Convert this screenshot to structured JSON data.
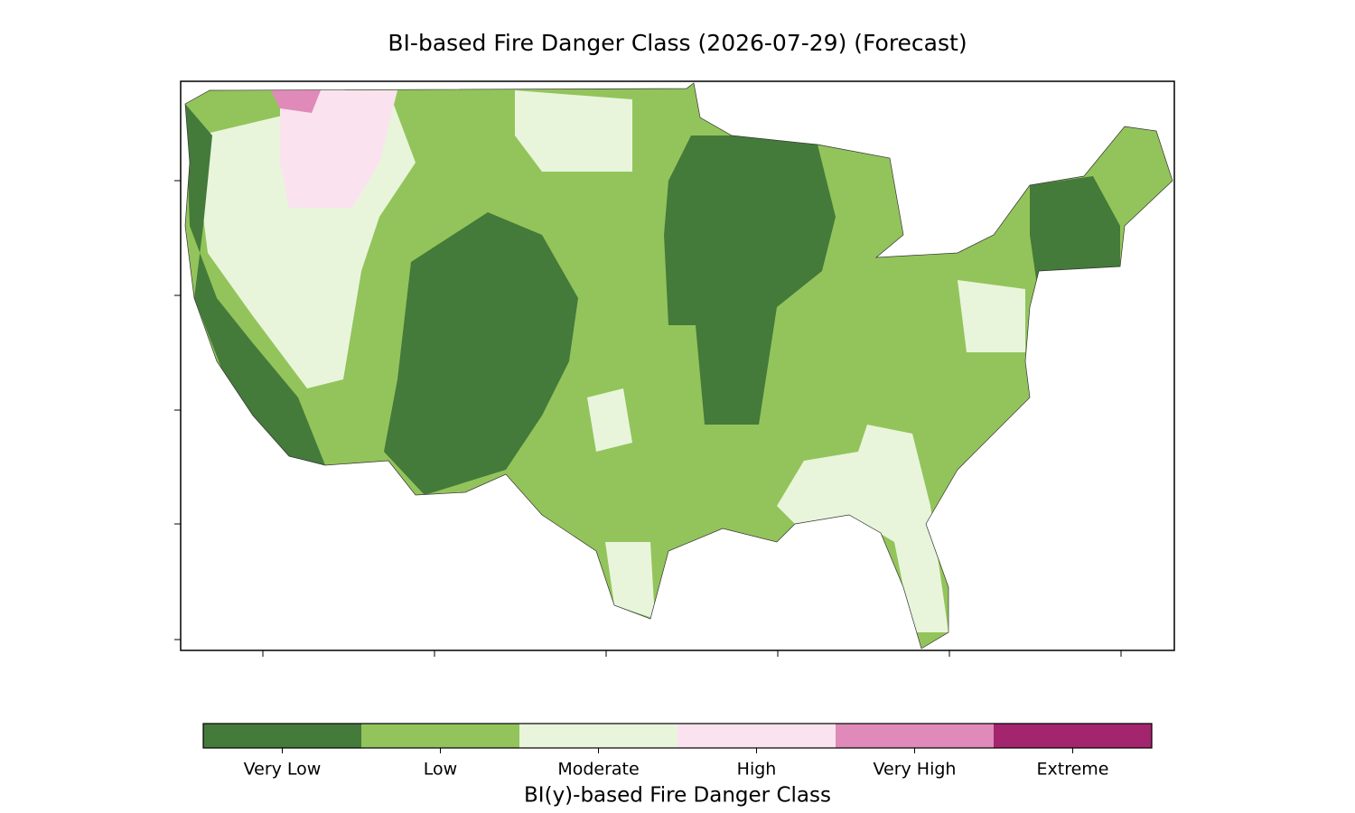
{
  "title": "BI-based Fire Danger Class (2026-07-29) (Forecast)",
  "colorbar": {
    "label": "BI(y)-based Fire Danger Class",
    "classes": [
      {
        "name": "Very Low",
        "color": "#447a3a"
      },
      {
        "name": "Low",
        "color": "#93c45b"
      },
      {
        "name": "Moderate",
        "color": "#e8f5db"
      },
      {
        "name": "High",
        "color": "#fbe2ef"
      },
      {
        "name": "Very High",
        "color": "#e08ab9"
      },
      {
        "name": "Extreme",
        "color": "#a3256e"
      }
    ]
  }
}
